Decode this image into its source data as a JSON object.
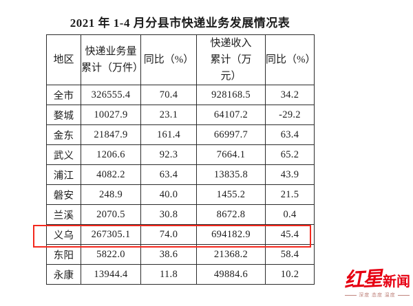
{
  "page": {
    "background": "#ffffff"
  },
  "title": "2021 年 1-4 月分县市快递业务发展情况表",
  "table": {
    "headers": [
      "地区",
      "快递业务量\n累计（万件）",
      "同比（%）",
      "快递收入\n累计（万\n元）",
      "同比（%）"
    ],
    "rows": [
      {
        "region": "全市",
        "values": [
          "326555.4",
          "70.4",
          "928168.5",
          "34.2"
        ]
      },
      {
        "region": "婺城",
        "values": [
          "10027.9",
          "23.1",
          "64107.2",
          "-29.2"
        ]
      },
      {
        "region": "金东",
        "values": [
          "21847.9",
          "161.4",
          "66997.7",
          "63.4"
        ]
      },
      {
        "region": "武义",
        "values": [
          "1206.6",
          "92.3",
          "7664.1",
          "65.2"
        ]
      },
      {
        "region": "浦江",
        "values": [
          "4082.2",
          "63.4",
          "13835.8",
          "43.9"
        ]
      },
      {
        "region": "磐安",
        "values": [
          "248.9",
          "40.0",
          "1455.2",
          "21.5"
        ]
      },
      {
        "region": "兰溪",
        "values": [
          "2070.5",
          "30.8",
          "8672.8",
          "0.4"
        ]
      },
      {
        "region": "义乌",
        "values": [
          "267305.1",
          "74.0",
          "694182.9",
          "45.4"
        ]
      },
      {
        "region": "东阳",
        "values": [
          "5822.0",
          "38.6",
          "21368.2",
          "58.4"
        ]
      },
      {
        "region": "永康",
        "values": [
          "13944.4",
          "11.8",
          "49884.6",
          "10.2"
        ]
      }
    ],
    "highlight": {
      "region": "义乌",
      "border_color": "#f3281d"
    }
  },
  "logo": {
    "brand_calligraphy": "红星",
    "brand_text": "新闻",
    "tagline": "深度 态度 温度",
    "color": "#e60012"
  },
  "chart_data": {
    "type": "table",
    "title": "2021 年 1-4 月分县市快递业务发展情况表",
    "columns": [
      "地区",
      "快递业务量累计（万件）",
      "同比（%）",
      "快递收入累计（万元）",
      "同比（%）"
    ],
    "rows": [
      [
        "全市",
        326555.4,
        70.4,
        928168.5,
        34.2
      ],
      [
        "婺城",
        10027.9,
        23.1,
        64107.2,
        -29.2
      ],
      [
        "金东",
        21847.9,
        161.4,
        66997.7,
        63.4
      ],
      [
        "武义",
        1206.6,
        92.3,
        7664.1,
        65.2
      ],
      [
        "浦江",
        4082.2,
        63.4,
        13835.8,
        43.9
      ],
      [
        "磐安",
        248.9,
        40.0,
        1455.2,
        21.5
      ],
      [
        "兰溪",
        2070.5,
        30.8,
        8672.8,
        0.4
      ],
      [
        "义乌",
        267305.1,
        74.0,
        694182.9,
        45.4
      ],
      [
        "东阳",
        5822.0,
        38.6,
        21368.2,
        58.4
      ],
      [
        "永康",
        13944.4,
        11.8,
        49884.6,
        10.2
      ]
    ],
    "highlighted_row": "义乌"
  }
}
